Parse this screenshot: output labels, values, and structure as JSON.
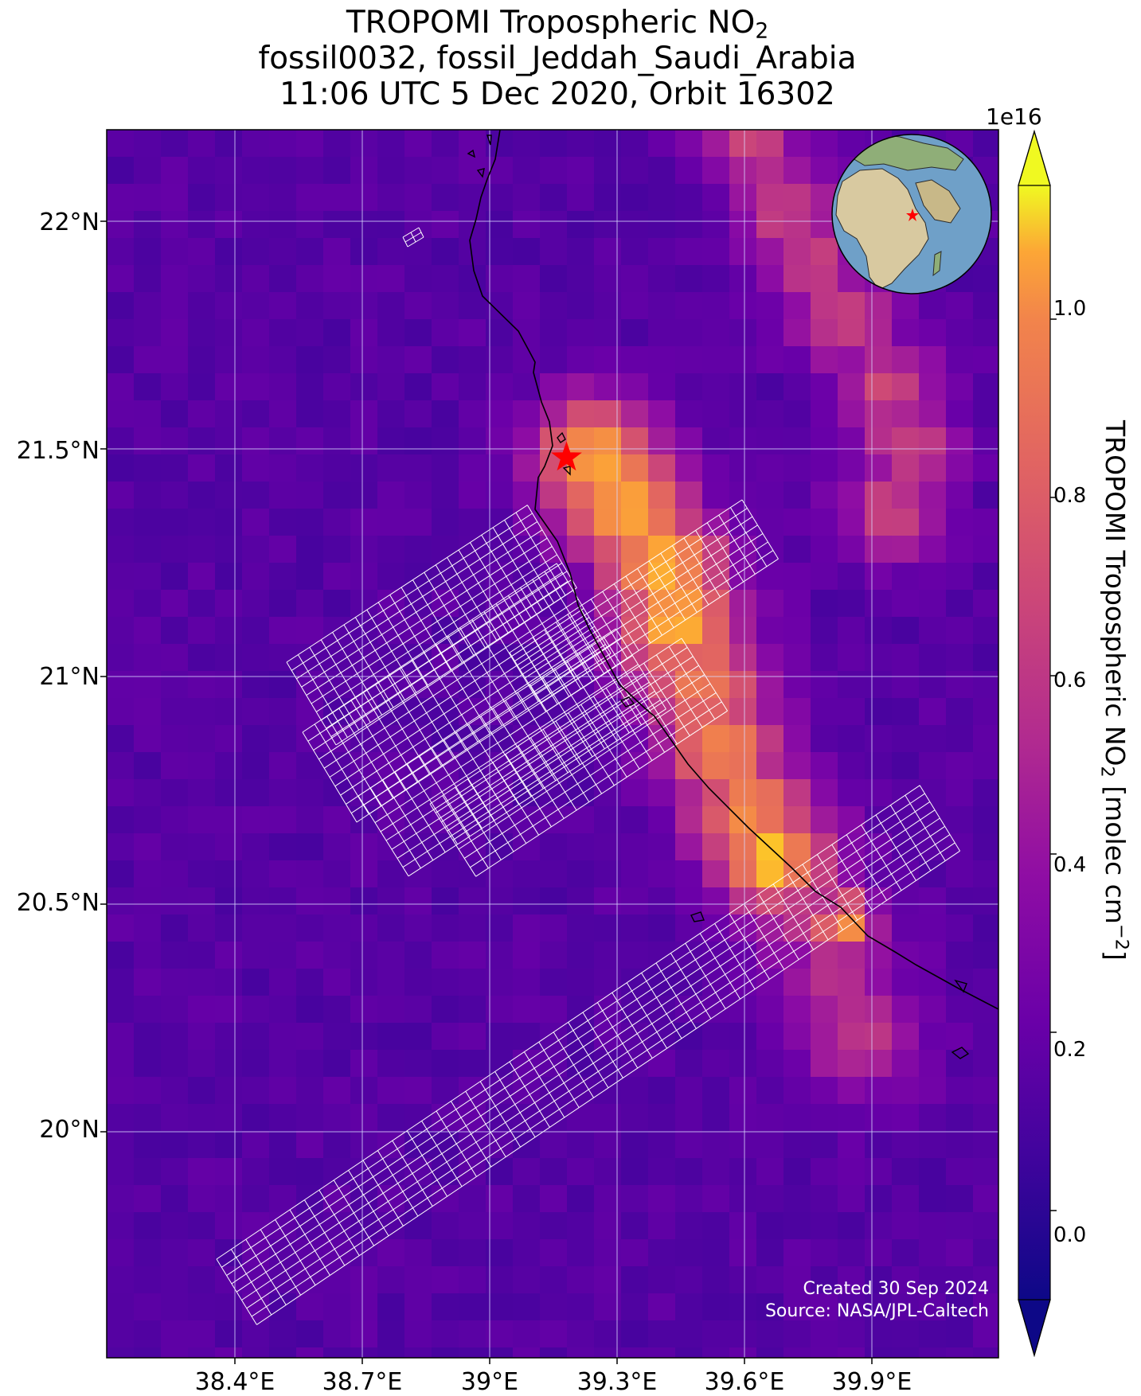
{
  "title": {
    "line1_prefix": "TROPOMI Tropospheric NO",
    "line1_sub": "2",
    "line2": "fossil0032, fossil_Jeddah_Saudi_Arabia",
    "line3": "11:06 UTC 5 Dec 2020, Orbit 16302"
  },
  "map": {
    "lon_range": [
      38.1,
      40.2
    ],
    "lat_range": [
      19.6,
      22.2
    ],
    "lat_ticks": [
      {
        "value": 22.0,
        "label": "22°N"
      },
      {
        "value": 21.5,
        "label": "21.5°N"
      },
      {
        "value": 21.0,
        "label": "21°N"
      },
      {
        "value": 20.5,
        "label": "20.5°N"
      },
      {
        "value": 20.0,
        "label": "20°N"
      }
    ],
    "lon_ticks": [
      {
        "value": 38.4,
        "label": "38.4°E"
      },
      {
        "value": 38.7,
        "label": "38.7°E"
      },
      {
        "value": 39.0,
        "label": "39°E"
      },
      {
        "value": 39.3,
        "label": "39.3°E"
      },
      {
        "value": 39.6,
        "label": "39.6°E"
      },
      {
        "value": 39.9,
        "label": "39.9°E"
      }
    ],
    "site_marker": {
      "lon": 39.18,
      "lat": 21.48,
      "color": "#ff0000"
    },
    "gridline_color": "#d8d8ff",
    "coastline_color": "#000000",
    "footprint_color": "#ffffff",
    "inset_globe": "globe-inset showing Africa and the Middle East with site marker"
  },
  "colorbar": {
    "colormap": "plasma",
    "min": -0.1,
    "max": 1.15,
    "scale_exponent": "1e16",
    "extend": "both",
    "ticks": [
      {
        "value": 1.0,
        "label": "1.0"
      },
      {
        "value": 0.8,
        "label": "0.8"
      },
      {
        "value": 0.6,
        "label": "0.6"
      },
      {
        "value": 0.4,
        "label": "0.4"
      },
      {
        "value": 0.2,
        "label": "0.2"
      },
      {
        "value": 0.0,
        "label": "0.0"
      }
    ],
    "label_prefix": "TROPOMI Tropospheric NO",
    "label_sub": "2",
    "label_mid": " [molec cm",
    "label_sup": "−2",
    "label_suffix": "]"
  },
  "credits": {
    "created": "Created 30 Sep 2024",
    "source": "Source: NASA/JPL-Caltech"
  }
}
